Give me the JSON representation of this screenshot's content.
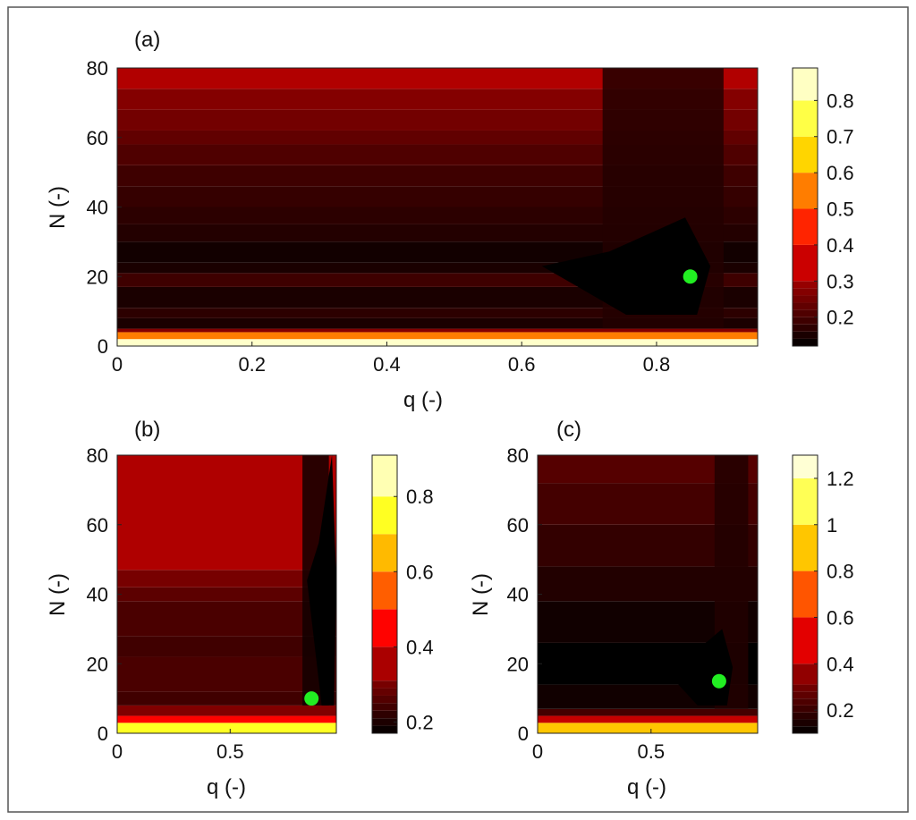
{
  "figure": {
    "border_color": "#555555"
  },
  "chart_data": [
    {
      "id": "a",
      "type": "heatmap",
      "panel_label": "(a)",
      "xlabel": "q (-)",
      "ylabel": "N (-)",
      "xlim": [
        0,
        0.95
      ],
      "ylim": [
        0,
        80
      ],
      "xticks": [
        0,
        0.2,
        0.4,
        0.6,
        0.8
      ],
      "xtick_labels": [
        "0",
        "0.2",
        "0.4",
        "0.6",
        "0.8"
      ],
      "yticks": [
        0,
        20,
        40,
        60,
        80
      ],
      "yticks_labels": [
        "0",
        "20",
        "40",
        "60",
        "80"
      ],
      "colorbar": {
        "range": [
          0.12,
          0.89
        ],
        "ticks": [
          0.2,
          0.3,
          0.4,
          0.5,
          0.6,
          0.7,
          0.8
        ],
        "tick_labels": [
          "0.2",
          "0.3",
          "0.4",
          "0.5",
          "0.6",
          "0.7",
          "0.8"
        ],
        "band_ticks": [
          0.12,
          0.14,
          0.16,
          0.18,
          0.2,
          0.22,
          0.24,
          0.26,
          0.28,
          0.3,
          0.4,
          0.5,
          0.6,
          0.7,
          0.8,
          0.89
        ]
      },
      "band_rows": [
        {
          "n": [
            0,
            2
          ],
          "level": 0.85
        },
        {
          "n": [
            2,
            4
          ],
          "level": 0.55
        },
        {
          "n": [
            4,
            5
          ],
          "level": 0.27
        },
        {
          "n": [
            5,
            8
          ],
          "level": 0.15
        },
        {
          "n": [
            8,
            11
          ],
          "level": 0.17
        },
        {
          "n": [
            11,
            17
          ],
          "level": 0.15
        },
        {
          "n": [
            17,
            21
          ],
          "level": 0.19
        },
        {
          "n": [
            21,
            24
          ],
          "level": 0.15
        },
        {
          "n": [
            24,
            30
          ],
          "level": 0.14
        },
        {
          "n": [
            30,
            35
          ],
          "level": 0.16
        },
        {
          "n": [
            35,
            40
          ],
          "level": 0.17
        },
        {
          "n": [
            40,
            46
          ],
          "level": 0.18
        },
        {
          "n": [
            46,
            52
          ],
          "level": 0.19
        },
        {
          "n": [
            52,
            58
          ],
          "level": 0.21
        },
        {
          "n": [
            58,
            62
          ],
          "level": 0.23
        },
        {
          "n": [
            62,
            68
          ],
          "level": 0.25
        },
        {
          "n": [
            68,
            74
          ],
          "level": 0.27
        },
        {
          "n": [
            74,
            80
          ],
          "level": 0.32
        }
      ],
      "right_edge": {
        "q_start": 0.72,
        "level": 0.16
      },
      "optimum_region": {
        "q": [
          0.63,
          0.88
        ],
        "n": [
          9,
          37
        ],
        "level": 0.12
      },
      "optimum_point": {
        "q": 0.85,
        "n": 20,
        "color": "#22ee22"
      }
    },
    {
      "id": "b",
      "type": "heatmap",
      "panel_label": "(b)",
      "xlabel": "q (-)",
      "ylabel": "N (-)",
      "xlim": [
        0,
        0.97
      ],
      "ylim": [
        0,
        80
      ],
      "xticks": [
        0,
        0.5
      ],
      "xtick_labels": [
        "0",
        "0.5"
      ],
      "yticks": [
        0,
        20,
        40,
        60,
        80
      ],
      "yticks_labels": [
        "0",
        "20",
        "40",
        "60",
        "80"
      ],
      "colorbar": {
        "range": [
          0.17,
          0.91
        ],
        "ticks": [
          0.2,
          0.4,
          0.6,
          0.8
        ],
        "tick_labels": [
          "0.2",
          "0.4",
          "0.6",
          "0.8"
        ],
        "band_ticks": [
          0.17,
          0.19,
          0.21,
          0.23,
          0.25,
          0.27,
          0.29,
          0.31,
          0.4,
          0.5,
          0.6,
          0.7,
          0.8,
          0.91
        ]
      },
      "band_rows": [
        {
          "n": [
            0,
            3
          ],
          "level": 0.75
        },
        {
          "n": [
            3,
            5
          ],
          "level": 0.45
        },
        {
          "n": [
            5,
            8
          ],
          "level": 0.31
        },
        {
          "n": [
            8,
            12
          ],
          "level": 0.24
        },
        {
          "n": [
            12,
            22
          ],
          "level": 0.25
        },
        {
          "n": [
            22,
            28
          ],
          "level": 0.24
        },
        {
          "n": [
            28,
            38
          ],
          "level": 0.25
        },
        {
          "n": [
            38,
            42
          ],
          "level": 0.27
        },
        {
          "n": [
            42,
            47
          ],
          "level": 0.3
        },
        {
          "n": [
            47,
            80
          ],
          "level": 0.36
        }
      ],
      "right_edge": {
        "q_start": 0.82,
        "level": 0.19
      },
      "optimum_region": {
        "q": [
          0.84,
          0.97
        ],
        "n": [
          8,
          80
        ],
        "level": 0.17
      },
      "optimum_point": {
        "q": 0.86,
        "n": 10,
        "color": "#22ee22"
      }
    },
    {
      "id": "c",
      "type": "heatmap",
      "panel_label": "(c)",
      "xlabel": "q (-)",
      "ylabel": "N (-)",
      "xlim": [
        0,
        0.97
      ],
      "ylim": [
        0,
        80
      ],
      "xticks": [
        0,
        0.5
      ],
      "xtick_labels": [
        "0",
        "0.5"
      ],
      "yticks": [
        0,
        20,
        40,
        60,
        80
      ],
      "yticks_labels": [
        "0",
        "20",
        "40",
        "60",
        "80"
      ],
      "colorbar": {
        "range": [
          0.1,
          1.3
        ],
        "ticks": [
          0.2,
          0.4,
          0.6,
          0.8,
          1,
          1.2
        ],
        "tick_labels": [
          "0.2",
          "0.4",
          "0.6",
          "0.8",
          "1",
          "1.2"
        ],
        "band_ticks": [
          0.1,
          0.13,
          0.16,
          0.19,
          0.22,
          0.25,
          0.28,
          0.31,
          0.4,
          0.6,
          0.8,
          1.0,
          1.2,
          1.3
        ]
      },
      "band_rows": [
        {
          "n": [
            0,
            3
          ],
          "level": 0.9
        },
        {
          "n": [
            3,
            5
          ],
          "level": 0.45
        },
        {
          "n": [
            5,
            7
          ],
          "level": 0.22
        },
        {
          "n": [
            7,
            14
          ],
          "level": 0.13
        },
        {
          "n": [
            14,
            26
          ],
          "level": 0.1
        },
        {
          "n": [
            26,
            38
          ],
          "level": 0.13
        },
        {
          "n": [
            38,
            48
          ],
          "level": 0.16
        },
        {
          "n": [
            48,
            60
          ],
          "level": 0.19
        },
        {
          "n": [
            60,
            72
          ],
          "level": 0.22
        },
        {
          "n": [
            72,
            80
          ],
          "level": 0.25
        }
      ],
      "right_edge": {
        "q_start": 0.78,
        "level": 0.16
      },
      "optimum_region": {
        "q": [
          0.55,
          0.86
        ],
        "n": [
          8,
          30
        ],
        "level": 0.1
      },
      "optimum_point": {
        "q": 0.8,
        "n": 15,
        "color": "#22ee22"
      }
    }
  ]
}
